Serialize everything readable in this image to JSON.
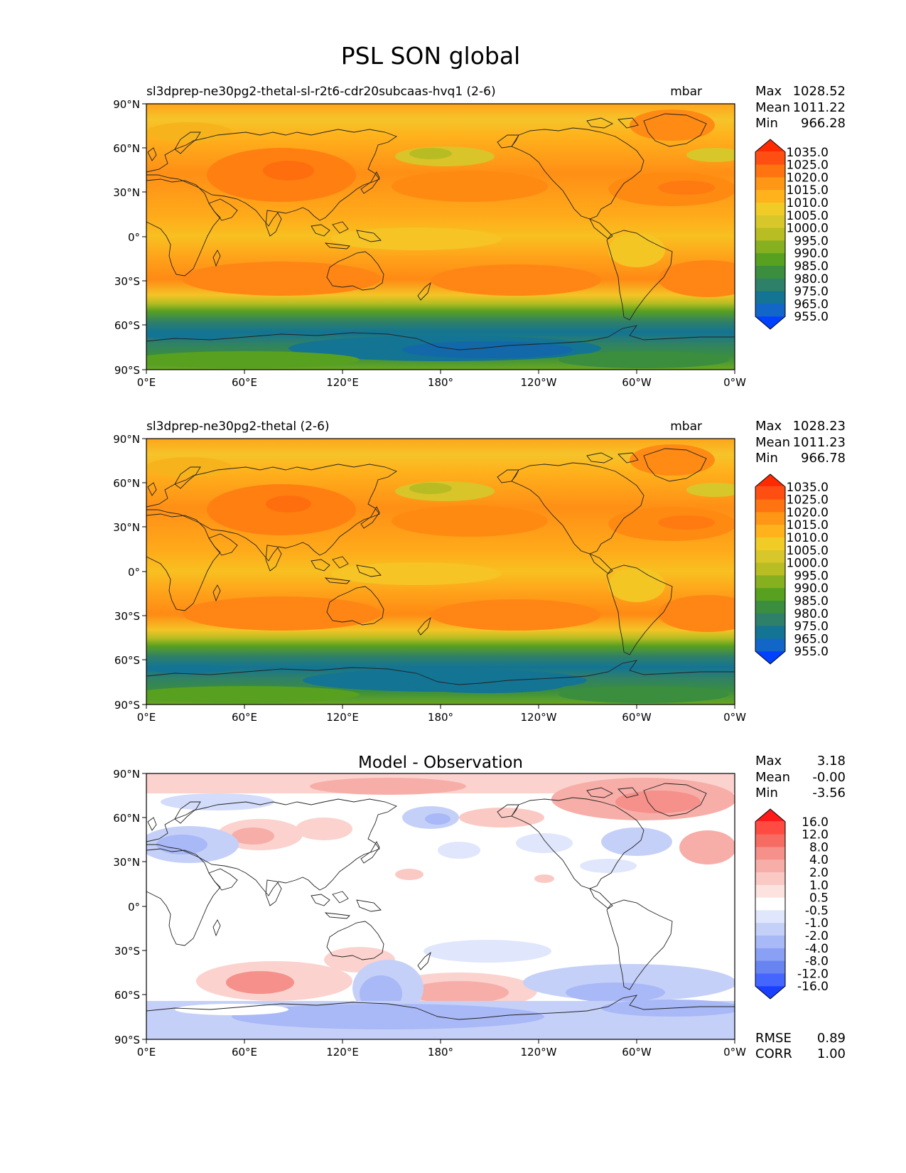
{
  "title": "PSL SON global",
  "axes": {
    "lat_labels": [
      "90°N",
      "60°N",
      "30°N",
      "0°",
      "30°S",
      "60°S",
      "90°S"
    ],
    "lon_labels": [
      "0°E",
      "60°E",
      "120°E",
      "180°",
      "120°W",
      "60°W",
      "0°W"
    ]
  },
  "panels": [
    {
      "title": "sl3dprep-ne30pg2-thetal-sl-r2t6-cdr20subcaas-hvq1 (2-6)",
      "units": "mbar",
      "stats": [
        {
          "label": "Max",
          "value": "1028.52"
        },
        {
          "label": "Mean",
          "value": "1011.22"
        },
        {
          "label": "Min",
          "value": "966.28"
        }
      ],
      "colorbar": {
        "levels": [
          "1035.0",
          "1025.0",
          "1020.0",
          "1015.0",
          "1010.0",
          "1005.0",
          "1000.0",
          "995.0",
          "990.0",
          "985.0",
          "980.0",
          "975.0",
          "965.0",
          "955.0"
        ],
        "colors": [
          "#ff2a00",
          "#ff4e12",
          "#ff7410",
          "#ff9616",
          "#ffb21c",
          "#f2cc26",
          "#d8c72a",
          "#b7bd22",
          "#86b020",
          "#58a020",
          "#3a8e3e",
          "#2f8068",
          "#137494",
          "#1266c8",
          "#0040ff"
        ]
      }
    },
    {
      "title": "sl3dprep-ne30pg2-thetal (2-6)",
      "units": "mbar",
      "stats": [
        {
          "label": "Max",
          "value": "1028.23"
        },
        {
          "label": "Mean",
          "value": "1011.23"
        },
        {
          "label": "Min",
          "value": "966.78"
        }
      ],
      "colorbar": {
        "levels": [
          "1035.0",
          "1025.0",
          "1020.0",
          "1015.0",
          "1010.0",
          "1005.0",
          "1000.0",
          "995.0",
          "990.0",
          "985.0",
          "980.0",
          "975.0",
          "965.0",
          "955.0"
        ],
        "colors": [
          "#ff2a00",
          "#ff4e12",
          "#ff7410",
          "#ff9616",
          "#ffb21c",
          "#f2cc26",
          "#d8c72a",
          "#b7bd22",
          "#86b020",
          "#58a020",
          "#3a8e3e",
          "#2f8068",
          "#137494",
          "#1266c8",
          "#0040ff"
        ]
      }
    },
    {
      "title": "Model - Observation",
      "units": "",
      "stats": [
        {
          "label": "Max",
          "value": "3.18"
        },
        {
          "label": "Mean",
          "value": "-0.00"
        },
        {
          "label": "Min",
          "value": "-3.56"
        }
      ],
      "extra_stats": [
        {
          "label": "RMSE",
          "value": "0.89"
        },
        {
          "label": "CORR",
          "value": "1.00"
        }
      ],
      "colorbar": {
        "levels": [
          "16.0",
          "12.0",
          "8.0",
          "4.0",
          "2.0",
          "1.0",
          "0.5",
          "-0.5",
          "-1.0",
          "-2.0",
          "-4.0",
          "-8.0",
          "-12.0",
          "-16.0"
        ],
        "colors": [
          "#ff1a1a",
          "#ff4b42",
          "#f66b62",
          "#f5908a",
          "#f7aea8",
          "#fac9c4",
          "#fde3e0",
          "#ffffff",
          "#e0e6fb",
          "#c5d0f8",
          "#a9b8f6",
          "#8aa0f4",
          "#6884f0",
          "#4466ff",
          "#1a40ff"
        ]
      }
    }
  ]
}
